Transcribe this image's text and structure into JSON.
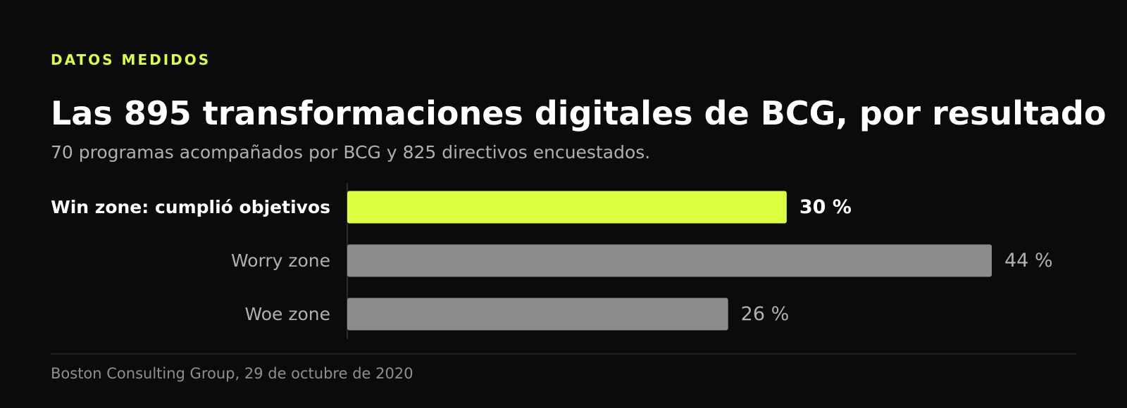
{
  "eyebrow": "DATOS MEDIDOS",
  "title": "Las 895 transformaciones digitales de BCG, por resultado",
  "subtitle": "70 programas acompañados por BCG y 825 directivos encuestados.",
  "source": "Boston Consulting Group, 29 de octubre de 2020",
  "colors": {
    "background": "#0b0b0b",
    "highlight": "#d9ff3f",
    "bar": "#8c8c8c",
    "label": "#b0b0b0",
    "label_highlight": "#ffffff"
  },
  "chart_data": {
    "type": "bar",
    "orientation": "horizontal",
    "title": "Las 895 transformaciones digitales de BCG, por resultado",
    "categories": [
      "Win zone: cumplió objetivos",
      "Worry zone",
      "Woe zone"
    ],
    "values": [
      30,
      44,
      26
    ],
    "value_labels": [
      "30 %",
      "44 %",
      "26 %"
    ],
    "unit": "%",
    "highlighted_index": 0,
    "xlim": [
      0,
      44
    ],
    "grid": false,
    "legend": "none"
  }
}
